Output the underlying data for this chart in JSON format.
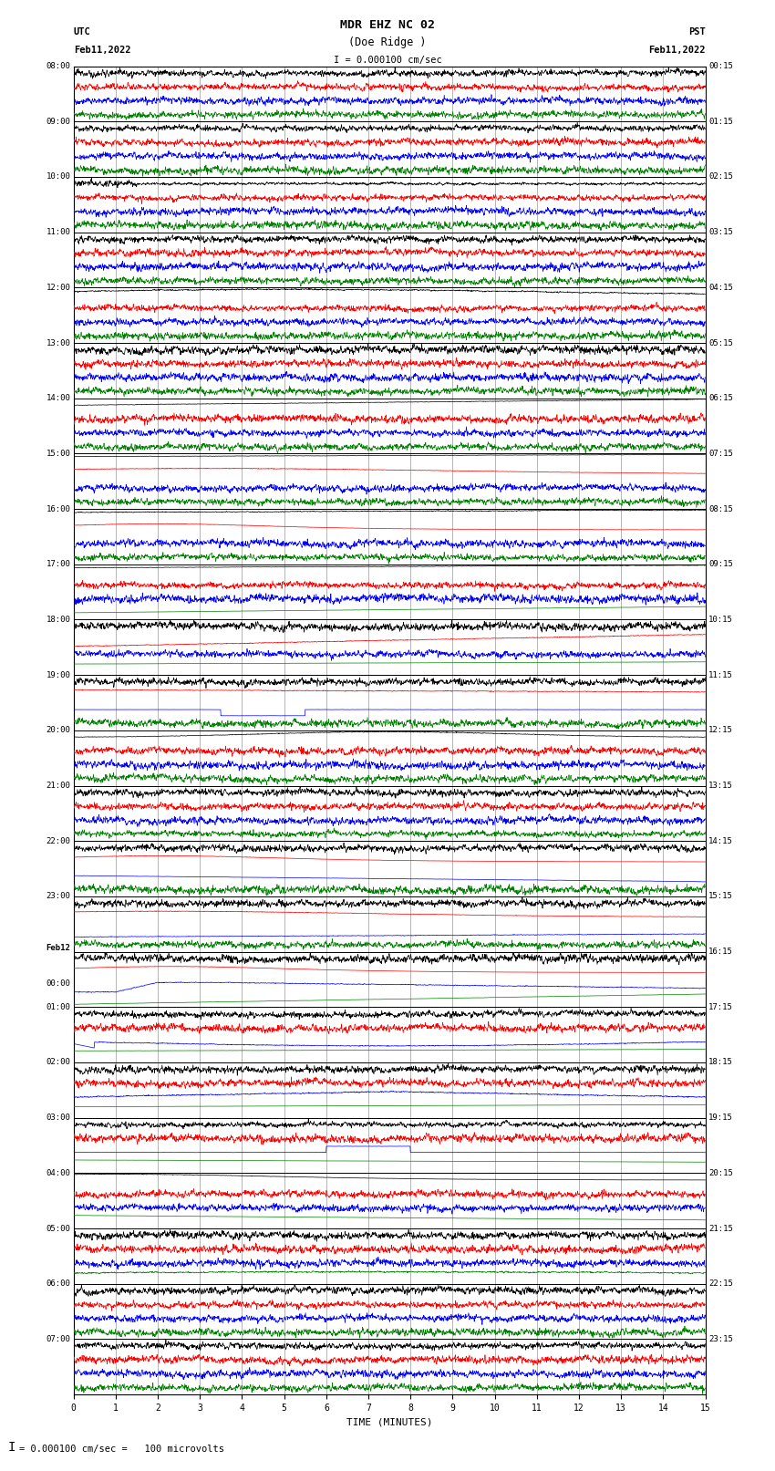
{
  "title_line1": "MDR EHZ NC 02",
  "title_line2": "(Doe Ridge )",
  "title_line3": "I = 0.000100 cm/sec",
  "left_header_line1": "UTC",
  "left_header_line2": "Feb11,2022",
  "right_header_line1": "PST",
  "right_header_line2": "Feb11,2022",
  "xlabel": "TIME (MINUTES)",
  "footer": "= 0.000100 cm/sec =   100 microvolts",
  "utc_times": [
    "08:00",
    "09:00",
    "10:00",
    "11:00",
    "12:00",
    "13:00",
    "14:00",
    "15:00",
    "16:00",
    "17:00",
    "18:00",
    "19:00",
    "20:00",
    "21:00",
    "22:00",
    "23:00",
    "Feb12\n00:00",
    "01:00",
    "02:00",
    "03:00",
    "04:00",
    "05:00",
    "06:00",
    "07:00"
  ],
  "pst_times": [
    "00:15",
    "01:15",
    "02:15",
    "03:15",
    "04:15",
    "05:15",
    "06:15",
    "07:15",
    "08:15",
    "09:15",
    "10:15",
    "11:15",
    "12:15",
    "13:15",
    "14:15",
    "15:15",
    "16:15",
    "17:15",
    "18:15",
    "19:15",
    "20:15",
    "21:15",
    "22:15",
    "23:15"
  ],
  "n_rows": 24,
  "n_minutes": 15,
  "colors": [
    "black",
    "red",
    "blue",
    "green"
  ],
  "bg_color": "#ffffff",
  "fig_width": 8.5,
  "fig_height": 16.13
}
